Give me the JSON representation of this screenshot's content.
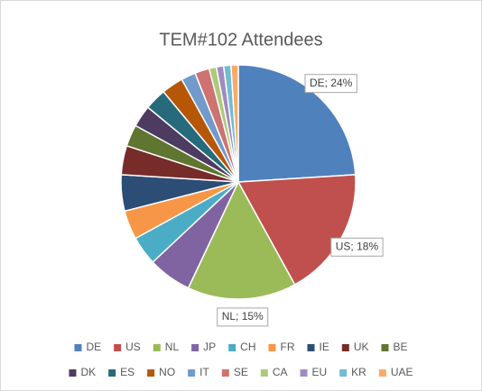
{
  "chart_data": {
    "type": "pie",
    "title": "TEM#102 Attendees",
    "categories": [
      "DE",
      "US",
      "NL",
      "JP",
      "CH",
      "FR",
      "IE",
      "UK",
      "BE",
      "DK",
      "ES",
      "NO",
      "IT",
      "SE",
      "CA",
      "EU",
      "KR",
      "UAE"
    ],
    "values": [
      24,
      18,
      15,
      6,
      4,
      4,
      5,
      4,
      3,
      3,
      3,
      3,
      2,
      2,
      1,
      1,
      1,
      1
    ],
    "value_labels": [
      "DE; 24%",
      "US; 18%",
      "NL; 15%",
      null,
      null,
      null,
      null,
      null,
      null,
      null,
      null,
      null,
      null,
      null,
      null,
      null,
      null,
      null
    ],
    "colors": [
      "#4f81bd",
      "#c0504d",
      "#9bbb59",
      "#8064a2",
      "#4bacc6",
      "#f79646",
      "#2c4d75",
      "#772c2a",
      "#5f7530",
      "#4d3b62",
      "#276a7c",
      "#b65708",
      "#729aca",
      "#cd7371",
      "#afc97a",
      "#a08bbf",
      "#6fbdd4",
      "#f9ab6b"
    ],
    "legend": "bottom"
  }
}
